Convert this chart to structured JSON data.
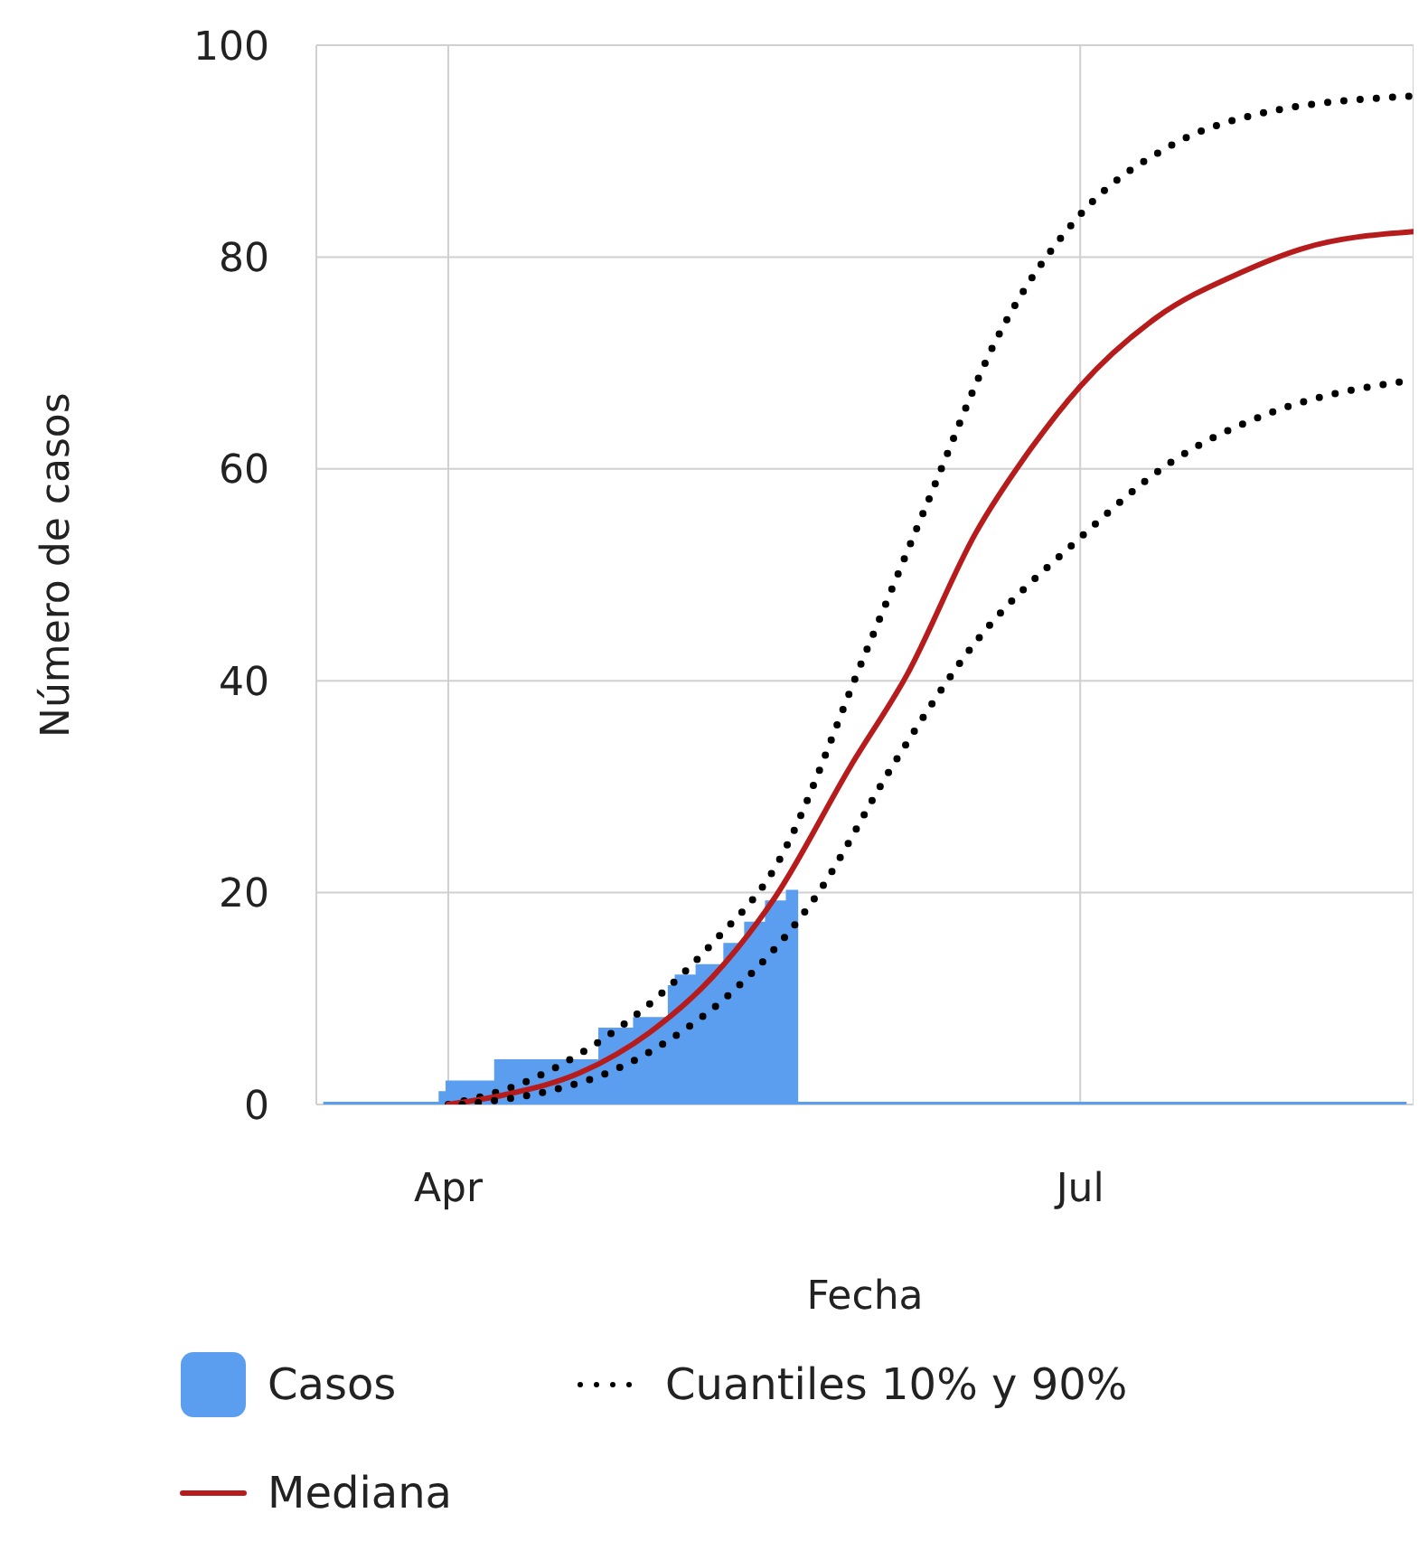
{
  "chart_data": {
    "type": "line",
    "xlabel": "Fecha",
    "ylabel": "Número de casos",
    "xlim": [
      "--03-13",
      "--08-18"
    ],
    "xticks": [
      {
        "value": "--04-01",
        "label": "Apr"
      },
      {
        "value": "--07-01",
        "label": "Jul"
      }
    ],
    "ylim": [
      0,
      100
    ],
    "yticks": [
      0,
      20,
      40,
      60,
      80,
      100
    ],
    "grid": true,
    "legend": "bottom",
    "series": [
      {
        "name": "Casos",
        "type": "area",
        "color": "#5b9ef0",
        "x": [
          "--03-14",
          "--03-31",
          "--04-01",
          "--04-08",
          "--04-23",
          "--04-28",
          "--05-03",
          "--05-04",
          "--05-07",
          "--05-11",
          "--05-14",
          "--05-17",
          "--05-20",
          "--05-21",
          "--08-17"
        ],
        "values": [
          0,
          1,
          2,
          4,
          7,
          8,
          11,
          12,
          13,
          15,
          17,
          19,
          20,
          0,
          0
        ]
      },
      {
        "name": "Cuantiles 10% y 90%",
        "color": "#000000",
        "line_style": "dotted",
        "x": [
          "--04-01",
          "--04-12",
          "--04-20",
          "--04-30",
          "--05-09",
          "--05-18",
          "--05-31",
          "--06-09",
          "--06-19",
          "--07-01",
          "--07-14",
          "--07-28",
          "--08-18"
        ],
        "values": [
          0,
          2.1,
          4.8,
          9.5,
          15.2,
          22.3,
          42.5,
          56.8,
          72.3,
          84,
          90.5,
          93.7,
          95.2
        ]
      },
      {
        "name": "Mediana",
        "color": "#b71c1c",
        "line_style": "solid",
        "x": [
          "--04-01",
          "--04-09",
          "--04-20",
          "--04-30",
          "--05-09",
          "--05-18",
          "--05-29",
          "--06-06",
          "--06-16",
          "--06-24",
          "--07-01",
          "--07-12",
          "--07-24",
          "--08-02",
          "--08-18"
        ],
        "values": [
          0,
          0.9,
          3,
          6.8,
          12,
          19.5,
          32,
          40.5,
          54,
          62,
          67.8,
          74.3,
          78.5,
          80.8,
          82.4
        ]
      },
      {
        "color": "#000000",
        "line_style": "dotted",
        "x": [
          "--04-03",
          "--04-15",
          "--04-24",
          "--05-04",
          "--05-12",
          "--05-24",
          "--06-04",
          "--06-16",
          "--07-01",
          "--07-14",
          "--07-28",
          "--08-18"
        ],
        "values": [
          0,
          1.2,
          3,
          6.6,
          10.7,
          19.7,
          32,
          43.7,
          53.5,
          60.6,
          65.2,
          68.4
        ]
      }
    ]
  }
}
